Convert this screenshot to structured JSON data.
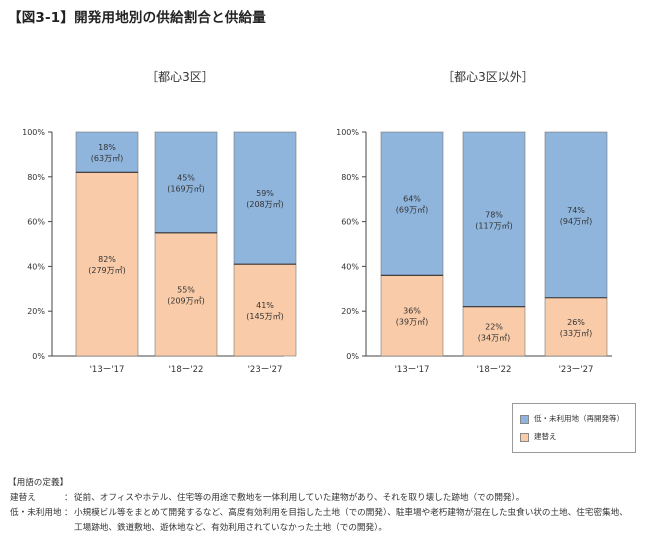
{
  "figure_title": "【図3-1】開発用地別の供給割合と供給量",
  "colors": {
    "rebuild": "#f9cba8",
    "vacant": "#8fb5dd",
    "line": "#5b5b5b"
  },
  "legend": {
    "vacant": "低・未利用地（再開発等）",
    "rebuild": "建替え"
  },
  "chart_data": [
    {
      "type": "bar",
      "stacked": true,
      "title": "［都心3区］",
      "categories": [
        "'13ー'17",
        "'18ー'22",
        "'23ー'27"
      ],
      "ylim": [
        0,
        100
      ],
      "yticks": [
        "0%",
        "20%",
        "40%",
        "60%",
        "80%",
        "100%"
      ],
      "series": [
        {
          "name": "建替え",
          "values": [
            82,
            55,
            41
          ],
          "labels": [
            "82%",
            "55%",
            "41%"
          ],
          "sublabels": [
            "(279万㎡)",
            "(209万㎡)",
            "(145万㎡)"
          ]
        },
        {
          "name": "低・未利用地（再開発等）",
          "values": [
            18,
            45,
            59
          ],
          "labels": [
            "18%",
            "45%",
            "59%"
          ],
          "sublabels": [
            "(63万㎡)",
            "(169万㎡)",
            "(208万㎡)"
          ]
        }
      ]
    },
    {
      "type": "bar",
      "stacked": true,
      "title": "［都心3区以外］",
      "categories": [
        "'13ー'17",
        "'18ー'22",
        "'23ー'27"
      ],
      "ylim": [
        0,
        100
      ],
      "yticks": [
        "0%",
        "20%",
        "40%",
        "60%",
        "80%",
        "100%"
      ],
      "series": [
        {
          "name": "建替え",
          "values": [
            36,
            22,
            26
          ],
          "labels": [
            "36%",
            "22%",
            "26%"
          ],
          "sublabels": [
            "(39万㎡)",
            "(34万㎡)",
            "(33万㎡)"
          ]
        },
        {
          "name": "低・未利用地（再開発等）",
          "values": [
            64,
            78,
            74
          ],
          "labels": [
            "64%",
            "78%",
            "74%"
          ],
          "sublabels": [
            "(69万㎡)",
            "(117万㎡)",
            "(94万㎡)"
          ]
        }
      ]
    }
  ],
  "definitions": {
    "heading": "【用語の定義】",
    "rebuild_term": "建替え",
    "rebuild_desc": "従前、オフィスやホテル、住宅等の用途で敷地を一体利用していた建物があり、それを取り壊した跡地（での開発）。",
    "vacant_term": "低・未利用地",
    "vacant_desc": "小規模ビル等をまとめて開発するなど、高度有効利用を目指した土地（での開発）、駐車場や老朽建物が混在した虫食い状の土地、住宅密集地、",
    "vacant_desc_cont": "工場跡地、鉄道敷地、遊休地など、有効利用されていなかった土地（での開発）。"
  }
}
